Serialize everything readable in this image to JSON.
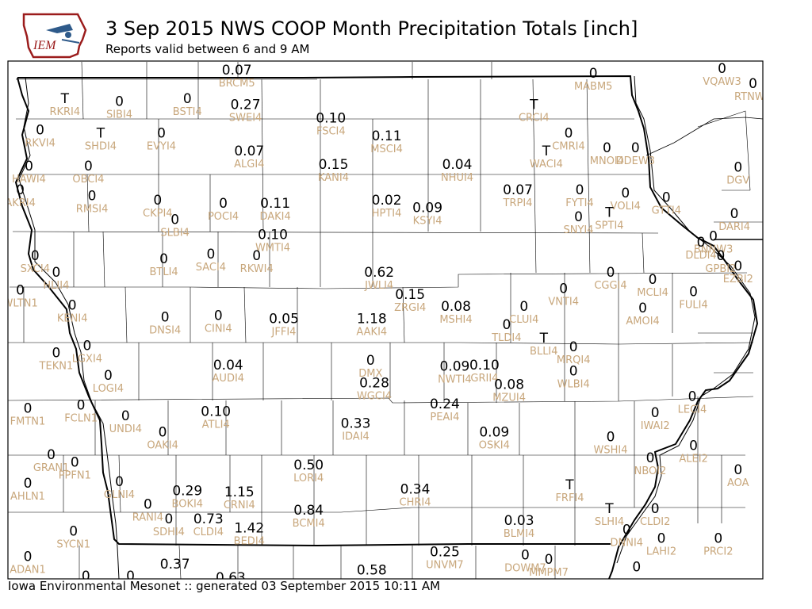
{
  "header": {
    "logo_text": "IEM",
    "title": "3 Sep 2015 NWS COOP Month Precipitation Totals [inch]",
    "subtitle": "Reports valid between 6 and 9 AM"
  },
  "footer": {
    "text": "Iowa Environmental Mesonet :: generated 03 September 2015 10:11 AM"
  },
  "colors": {
    "value": "#000000",
    "station": "#c8a77c",
    "county_lines": "#000000"
  },
  "stations": [
    {
      "id": "BRCM5",
      "value": "0.07",
      "lon": -94.8,
      "lat": 43.62
    },
    {
      "id": "MABM5",
      "value": "0",
      "lon": -91.92,
      "lat": 43.6
    },
    {
      "id": "VQAW3",
      "value": "0",
      "lon": -90.88,
      "lat": 43.63
    },
    {
      "id": "RTNW3",
      "value": "0",
      "lon": -90.63,
      "lat": 43.53
    },
    {
      "id": "RKRI4",
      "value": "T",
      "lon": -96.19,
      "lat": 43.43
    },
    {
      "id": "SIBI4",
      "value": "0",
      "lon": -95.75,
      "lat": 43.41
    },
    {
      "id": "BSTI4",
      "value": "0",
      "lon": -95.2,
      "lat": 43.43
    },
    {
      "id": "SWEI4",
      "value": "0.27",
      "lon": -94.73,
      "lat": 43.39
    },
    {
      "id": "FSCI4",
      "value": "0.10",
      "lon": -94.04,
      "lat": 43.3
    },
    {
      "id": "MSCI4",
      "value": "0.11",
      "lon": -93.59,
      "lat": 43.18
    },
    {
      "id": "CRCI4",
      "value": "T",
      "lon": -92.4,
      "lat": 43.39
    },
    {
      "id": "RKVI4",
      "value": "0",
      "lon": -96.39,
      "lat": 43.22
    },
    {
      "id": "SHDI4",
      "value": "T",
      "lon": -95.9,
      "lat": 43.2
    },
    {
      "id": "EVYI4",
      "value": "0",
      "lon": -95.41,
      "lat": 43.2
    },
    {
      "id": "ALGI4",
      "value": "0.07",
      "lon": -94.7,
      "lat": 43.08
    },
    {
      "id": "CMRI4",
      "value": "0",
      "lon": -92.12,
      "lat": 43.2
    },
    {
      "id": "WACI4",
      "value": "T",
      "lon": -92.3,
      "lat": 43.08
    },
    {
      "id": "MNOI4",
      "value": "0",
      "lon": -91.81,
      "lat": 43.1
    },
    {
      "id": "DDEW3",
      "value": "0",
      "lon": -91.58,
      "lat": 43.1
    },
    {
      "id": "HAWI4",
      "value": "0",
      "lon": -96.48,
      "lat": 42.98
    },
    {
      "id": "OBCI4",
      "value": "0",
      "lon": -96.0,
      "lat": 42.98
    },
    {
      "id": "KANI4",
      "value": "0.15",
      "lon": -94.02,
      "lat": 42.99
    },
    {
      "id": "NHUI4",
      "value": "0.04",
      "lon": -93.02,
      "lat": 42.99
    },
    {
      "id": "DGV",
      "value": "0",
      "lon": -90.75,
      "lat": 42.97
    },
    {
      "id": "AKRI4",
      "value": "0",
      "lon": -96.55,
      "lat": 42.82
    },
    {
      "id": "RMSI4",
      "value": "0",
      "lon": -95.97,
      "lat": 42.78
    },
    {
      "id": "CKPI4",
      "value": "0",
      "lon": -95.44,
      "lat": 42.75
    },
    {
      "id": "POCI4",
      "value": "0",
      "lon": -94.91,
      "lat": 42.73
    },
    {
      "id": "DAKI4",
      "value": "0.11",
      "lon": -94.49,
      "lat": 42.73
    },
    {
      "id": "HPTI4",
      "value": "0.02",
      "lon": -93.59,
      "lat": 42.75
    },
    {
      "id": "KSYI4",
      "value": "0.09",
      "lon": -93.26,
      "lat": 42.7
    },
    {
      "id": "TRPI4",
      "value": "0.07",
      "lon": -92.53,
      "lat": 42.82
    },
    {
      "id": "FYTI4",
      "value": "0",
      "lon": -92.03,
      "lat": 42.82
    },
    {
      "id": "VOLI4",
      "value": "0",
      "lon": -91.66,
      "lat": 42.8
    },
    {
      "id": "GTTI4",
      "value": "0",
      "lon": -91.33,
      "lat": 42.77
    },
    {
      "id": "SLBI4",
      "value": "0",
      "lon": -95.3,
      "lat": 42.62
    },
    {
      "id": "SNYI4",
      "value": "0",
      "lon": -92.04,
      "lat": 42.64
    },
    {
      "id": "SPTI4",
      "value": "T",
      "lon": -91.79,
      "lat": 42.67
    },
    {
      "id": "DARI4",
      "value": "0",
      "lon": -90.78,
      "lat": 42.66
    },
    {
      "id": "BNNW3",
      "value": "0",
      "lon": -90.95,
      "lat": 42.51
    },
    {
      "id": "DLDI4",
      "value": "0",
      "lon": -91.05,
      "lat": 42.47
    },
    {
      "id": "WMTI4",
      "value": "0.10",
      "lon": -94.51,
      "lat": 42.52
    },
    {
      "id": "SXCI4",
      "value": "0",
      "lon": -96.43,
      "lat": 42.38
    },
    {
      "id": "BTLI4",
      "value": "0",
      "lon": -95.39,
      "lat": 42.36
    },
    {
      "id": "SACI4",
      "value": "0",
      "lon": -95.01,
      "lat": 42.39
    },
    {
      "id": "RKWI4",
      "value": "0",
      "lon": -94.64,
      "lat": 42.38
    },
    {
      "id": "GPBI2",
      "value": "0",
      "lon": -90.89,
      "lat": 42.38
    },
    {
      "id": "EZBI2",
      "value": "0",
      "lon": -90.75,
      "lat": 42.31
    },
    {
      "id": "HLII4",
      "value": "0",
      "lon": -96.26,
      "lat": 42.27
    },
    {
      "id": "JWLI4",
      "value": "0.62",
      "lon": -93.65,
      "lat": 42.27
    },
    {
      "id": "CGGI4",
      "value": "0",
      "lon": -91.78,
      "lat": 42.27
    },
    {
      "id": "MCLI4",
      "value": "0",
      "lon": -91.44,
      "lat": 42.22
    },
    {
      "id": "WLTN1",
      "value": "0",
      "lon": -96.55,
      "lat": 42.15
    },
    {
      "id": "VNTI4",
      "value": "0",
      "lon": -92.16,
      "lat": 42.16
    },
    {
      "id": "FULI4",
      "value": "0",
      "lon": -91.11,
      "lat": 42.14
    },
    {
      "id": "ZRGI4",
      "value": "0.15",
      "lon": -93.4,
      "lat": 42.12
    },
    {
      "id": "KENI4",
      "value": "0",
      "lon": -96.13,
      "lat": 42.05
    },
    {
      "id": "MSHI4",
      "value": "0.08",
      "lon": -93.03,
      "lat": 42.04
    },
    {
      "id": "CLUI4",
      "value": "0",
      "lon": -92.48,
      "lat": 42.04
    },
    {
      "id": "AMOI4",
      "value": "0",
      "lon": -91.52,
      "lat": 42.03
    },
    {
      "id": "DNSI4",
      "value": "0",
      "lon": -95.38,
      "lat": 41.97
    },
    {
      "id": "CINI4",
      "value": "0",
      "lon": -94.95,
      "lat": 41.98
    },
    {
      "id": "JFFI4",
      "value": "0.05",
      "lon": -94.42,
      "lat": 41.96
    },
    {
      "id": "AAKI4",
      "value": "1.18",
      "lon": -93.71,
      "lat": 41.96
    },
    {
      "id": "TLDI4",
      "value": "0",
      "lon": -92.62,
      "lat": 41.92
    },
    {
      "id": "BLLI4",
      "value": "T",
      "lon": -92.32,
      "lat": 41.83
    },
    {
      "id": "MRQI4",
      "value": "0",
      "lon": -92.08,
      "lat": 41.77
    },
    {
      "id": "LGXI4",
      "value": "0",
      "lon": -96.01,
      "lat": 41.78
    },
    {
      "id": "TEKN1",
      "value": "0",
      "lon": -96.26,
      "lat": 41.73
    },
    {
      "id": "DMX",
      "value": "0",
      "lon": -93.72,
      "lat": 41.68
    },
    {
      "id": "NWTI4",
      "value": "0.09",
      "lon": -93.04,
      "lat": 41.64
    },
    {
      "id": "GRII4",
      "value": "0.10",
      "lon": -92.8,
      "lat": 41.65
    },
    {
      "id": "AUDI4",
      "value": "0.04",
      "lon": -94.87,
      "lat": 41.65
    },
    {
      "id": "WLBI4",
      "value": "0",
      "lon": -92.08,
      "lat": 41.61
    },
    {
      "id": "LOGI4",
      "value": "0",
      "lon": -95.84,
      "lat": 41.58
    },
    {
      "id": "WGCI4",
      "value": "0.28",
      "lon": -93.69,
      "lat": 41.53
    },
    {
      "id": "MZUI4",
      "value": "0.08",
      "lon": -92.6,
      "lat": 41.52
    },
    {
      "id": "LECI4",
      "value": "0",
      "lon": -91.12,
      "lat": 41.44
    },
    {
      "id": "FMTN1",
      "value": "0",
      "lon": -96.49,
      "lat": 41.36
    },
    {
      "id": "FCLN1",
      "value": "0",
      "lon": -96.06,
      "lat": 41.38
    },
    {
      "id": "PEAI4",
      "value": "0.24",
      "lon": -93.12,
      "lat": 41.39
    },
    {
      "id": "ATLI4",
      "value": "0.10",
      "lon": -94.97,
      "lat": 41.34
    },
    {
      "id": "UNDI4",
      "value": "0",
      "lon": -95.7,
      "lat": 41.31
    },
    {
      "id": "IWAI2",
      "value": "0",
      "lon": -91.42,
      "lat": 41.33
    },
    {
      "id": "IDAI4",
      "value": "0.33",
      "lon": -93.84,
      "lat": 41.26
    },
    {
      "id": "OAKI4",
      "value": "0",
      "lon": -95.4,
      "lat": 41.2
    },
    {
      "id": "OSKI4",
      "value": "0.09",
      "lon": -92.72,
      "lat": 41.2
    },
    {
      "id": "WSHI4",
      "value": "0",
      "lon": -91.78,
      "lat": 41.17
    },
    {
      "id": "ALEI2",
      "value": "0",
      "lon": -91.11,
      "lat": 41.11
    },
    {
      "id": "GRAN1",
      "value": "0",
      "lon": -96.3,
      "lat": 41.05
    },
    {
      "id": "PPFN1",
      "value": "0",
      "lon": -96.11,
      "lat": 41.0
    },
    {
      "id": "NBOI2",
      "value": "0",
      "lon": -91.46,
      "lat": 41.03
    },
    {
      "id": "LORI4",
      "value": "0.50",
      "lon": -94.22,
      "lat": 40.98
    },
    {
      "id": "AOA",
      "value": "0",
      "lon": -90.75,
      "lat": 40.95
    },
    {
      "id": "AHLN1",
      "value": "0",
      "lon": -96.49,
      "lat": 40.86
    },
    {
      "id": "GLNI4",
      "value": "0",
      "lon": -95.75,
      "lat": 40.87
    },
    {
      "id": "BOKI4",
      "value": "0.29",
      "lon": -95.2,
      "lat": 40.81
    },
    {
      "id": "CRNI4",
      "value": "1.15",
      "lon": -94.78,
      "lat": 40.8
    },
    {
      "id": "CHRI4",
      "value": "0.34",
      "lon": -93.36,
      "lat": 40.82
    },
    {
      "id": "FRFI4",
      "value": "T",
      "lon": -92.11,
      "lat": 40.85
    },
    {
      "id": "RANI4",
      "value": "0",
      "lon": -95.52,
      "lat": 40.72
    },
    {
      "id": "SDHI4",
      "value": "0",
      "lon": -95.35,
      "lat": 40.62
    },
    {
      "id": "CLDI4",
      "value": "0.73",
      "lon": -95.03,
      "lat": 40.62
    },
    {
      "id": "BCMI4",
      "value": "0.84",
      "lon": -94.22,
      "lat": 40.68
    },
    {
      "id": "SLHI4",
      "value": "T",
      "lon": -91.79,
      "lat": 40.69
    },
    {
      "id": "CLDI2",
      "value": "0",
      "lon": -91.42,
      "lat": 40.69
    },
    {
      "id": "BLMI4",
      "value": "0.03",
      "lon": -92.52,
      "lat": 40.61
    },
    {
      "id": "BEDI4",
      "value": "1.42",
      "lon": -94.7,
      "lat": 40.56
    },
    {
      "id": "DNNI4",
      "value": "0",
      "lon": -91.65,
      "lat": 40.55
    },
    {
      "id": "LAHI2",
      "value": "0",
      "lon": -91.37,
      "lat": 40.49
    },
    {
      "id": "PRCI2",
      "value": "0",
      "lon": -90.91,
      "lat": 40.49
    },
    {
      "id": "SYCN1",
      "value": "0",
      "lon": -96.12,
      "lat": 40.54
    },
    {
      "id": "UNVM7",
      "value": "0.25",
      "lon": -93.12,
      "lat": 40.4
    },
    {
      "id": "DOWM7",
      "value": "0",
      "lon": -92.47,
      "lat": 40.38
    },
    {
      "id": "MMPM7",
      "value": "0",
      "lon": -92.28,
      "lat": 40.35
    },
    {
      "id": "ADAN1",
      "value": "0",
      "lon": -96.49,
      "lat": 40.37
    },
    {
      "id": "",
      "value": "0.37",
      "lon": -95.3,
      "lat": 40.32
    },
    {
      "id": "",
      "value": "0.58",
      "lon": -93.71,
      "lat": 40.28
    },
    {
      "id": "",
      "value": "0.63",
      "lon": -94.85,
      "lat": 40.23
    },
    {
      "id": "",
      "value": "0",
      "lon": -95.66,
      "lat": 40.24
    },
    {
      "id": "",
      "value": "0",
      "lon": -96.02,
      "lat": 40.24
    },
    {
      "id": "",
      "value": "0",
      "lon": -91.57,
      "lat": 40.3
    }
  ]
}
